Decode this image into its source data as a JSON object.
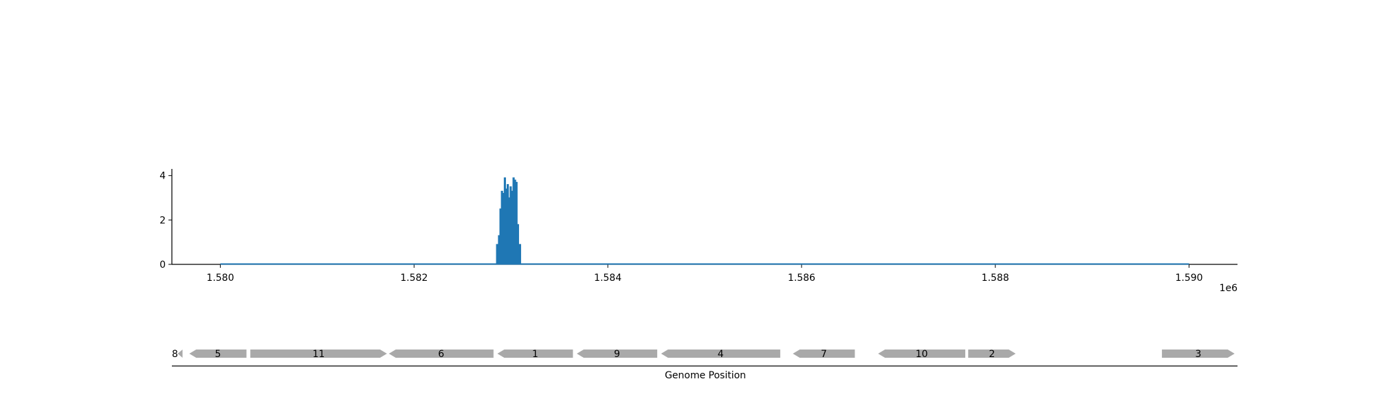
{
  "chart_data": {
    "type": "area",
    "title": "",
    "xlabel": "Genome Position",
    "ylabel": "",
    "x_offset_label": "1e6",
    "xlim": [
      1579500,
      1590500
    ],
    "ylim": [
      0,
      4.3
    ],
    "x_ticks": [
      1580000,
      1582000,
      1584000,
      1586000,
      1588000,
      1590000
    ],
    "x_tick_labels": [
      "1.580",
      "1.582",
      "1.584",
      "1.586",
      "1.588",
      "1.590"
    ],
    "y_ticks": [
      0,
      2,
      4
    ],
    "y_tick_labels": [
      "0",
      "2",
      "4"
    ],
    "grid": false,
    "legend": "none",
    "series": [
      {
        "color": "#1f77b4",
        "baseline_range": [
          1580000,
          1590000
        ],
        "x": [
          1582850,
          1582870,
          1582885,
          1582900,
          1582915,
          1582930,
          1582945,
          1582960,
          1582975,
          1582990,
          1583005,
          1583020,
          1583035,
          1583050,
          1583065,
          1583080
        ],
        "values": [
          0.9,
          1.3,
          2.5,
          3.3,
          3.2,
          3.9,
          3.4,
          3.6,
          3.0,
          3.5,
          3.3,
          3.9,
          3.8,
          3.7,
          1.8,
          0.9
        ]
      }
    ],
    "genes": {
      "color": "#a9a9a9",
      "items": [
        {
          "label": "8",
          "start": 1579560,
          "end": 1579610,
          "strand": "-"
        },
        {
          "label": "5",
          "start": 1579680,
          "end": 1580270,
          "strand": "-"
        },
        {
          "label": "11",
          "start": 1580310,
          "end": 1581720,
          "strand": "+"
        },
        {
          "label": "6",
          "start": 1581740,
          "end": 1582820,
          "strand": "-"
        },
        {
          "label": "1",
          "start": 1582860,
          "end": 1583640,
          "strand": "-"
        },
        {
          "label": "9",
          "start": 1583680,
          "end": 1584510,
          "strand": "-"
        },
        {
          "label": "4",
          "start": 1584550,
          "end": 1585780,
          "strand": "-"
        },
        {
          "label": "7",
          "start": 1585910,
          "end": 1586550,
          "strand": "-"
        },
        {
          "label": "10",
          "start": 1586790,
          "end": 1587690,
          "strand": "-"
        },
        {
          "label": "2",
          "start": 1587720,
          "end": 1588210,
          "strand": "+"
        },
        {
          "label": "3",
          "start": 1589720,
          "end": 1590470,
          "strand": "+"
        }
      ]
    }
  }
}
